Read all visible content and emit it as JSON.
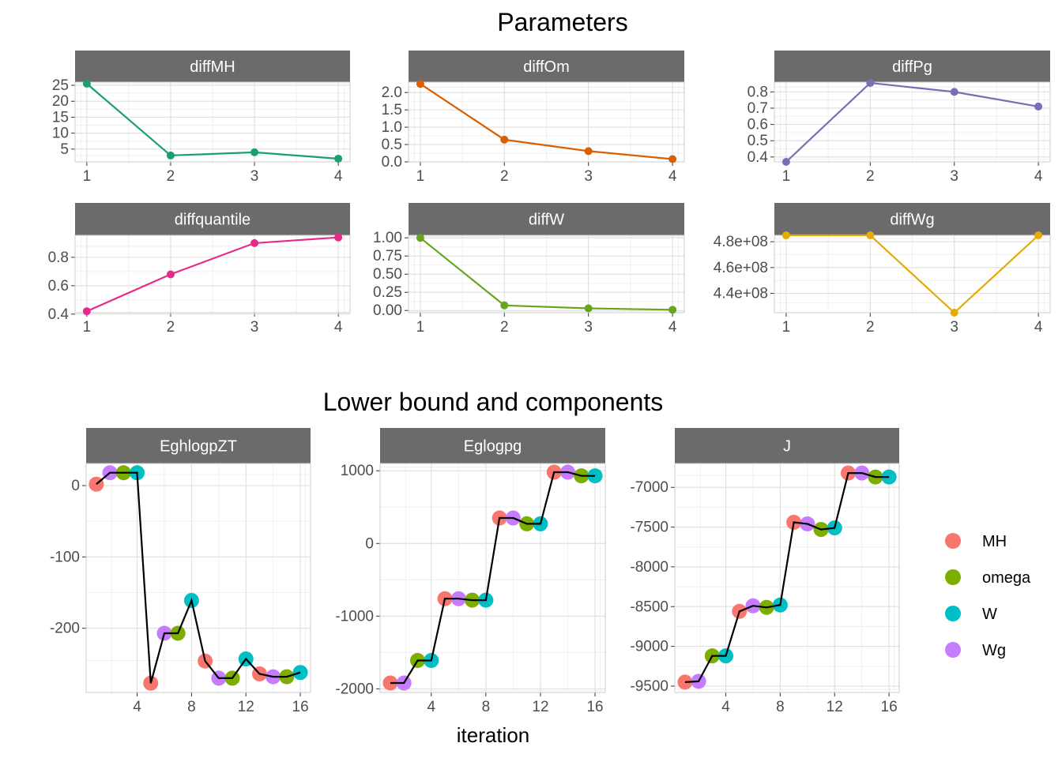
{
  "titles": {
    "top": "Parameters",
    "bottom": "Lower bound and components",
    "bottom_xlabel": "iteration"
  },
  "chart_data": [
    {
      "type": "line",
      "group": "Parameters",
      "panels": [
        {
          "name": "diffMH",
          "color": "#1b9e77",
          "x": [
            1,
            2,
            3,
            4
          ],
          "y": [
            25.5,
            3,
            4,
            2
          ],
          "ylim": [
            1,
            26
          ],
          "yticks": [
            5,
            10,
            15,
            20,
            25
          ],
          "yticklabels": [
            "5",
            "10",
            "15",
            "20",
            "25"
          ],
          "xticks": [
            1,
            2,
            3,
            4
          ]
        },
        {
          "name": "diffOm",
          "color": "#d95f02",
          "x": [
            1,
            2,
            3,
            4
          ],
          "y": [
            2.25,
            0.64,
            0.31,
            0.08
          ],
          "ylim": [
            0,
            2.3
          ],
          "yticks": [
            0,
            0.5,
            1,
            1.5,
            2
          ],
          "yticklabels": [
            "0.0",
            "0.5",
            "1.0",
            "1.5",
            "2.0"
          ],
          "xticks": [
            1,
            2,
            3,
            4
          ]
        },
        {
          "name": "diffPg",
          "color": "#7570b3",
          "x": [
            1,
            2,
            3,
            4
          ],
          "y": [
            0.37,
            0.855,
            0.8,
            0.71
          ],
          "ylim": [
            0.37,
            0.86
          ],
          "yticks": [
            0.4,
            0.5,
            0.6,
            0.7,
            0.8
          ],
          "yticklabels": [
            "0.4",
            "0.5",
            "0.6",
            "0.7",
            "0.8"
          ],
          "xticks": [
            1,
            2,
            3,
            4
          ]
        },
        {
          "name": "diffquantile",
          "color": "#e7298a",
          "x": [
            1,
            2,
            3,
            4
          ],
          "y": [
            0.42,
            0.68,
            0.9,
            0.94
          ],
          "ylim": [
            0.41,
            0.955
          ],
          "yticks": [
            0.4,
            0.6,
            0.8
          ],
          "yticklabels": [
            "0.4",
            "0.6",
            "0.8"
          ],
          "xticks": [
            1,
            2,
            3,
            4
          ]
        },
        {
          "name": "diffW",
          "color": "#66a61e",
          "x": [
            1,
            2,
            3,
            4
          ],
          "y": [
            1.0,
            0.07,
            0.03,
            0.01
          ],
          "ylim": [
            -0.03,
            1.035
          ],
          "yticks": [
            0,
            0.25,
            0.5,
            0.75,
            1
          ],
          "yticklabels": [
            "0.00",
            "0.25",
            "0.50",
            "0.75",
            "1.00"
          ],
          "xticks": [
            1,
            2,
            3,
            4
          ]
        },
        {
          "name": "diffWg",
          "color": "#e6ab02",
          "x": [
            1,
            2,
            3,
            4
          ],
          "y": [
            485000000,
            485000000,
            425000000,
            485000000
          ],
          "ylim": [
            425000000,
            485000000
          ],
          "yticks": [
            440000000,
            460000000,
            480000000
          ],
          "yticklabels": [
            "4.4e+08",
            "4.6e+08",
            "4.8e+08"
          ],
          "xticks": [
            1,
            2,
            3,
            4
          ]
        }
      ]
    },
    {
      "type": "line",
      "group": "Lower bound and components",
      "xlabel": "iteration",
      "legend": [
        {
          "label": "MH",
          "color": "#F8766D"
        },
        {
          "label": "omega",
          "color": "#7CAE00"
        },
        {
          "label": "W",
          "color": "#00BFC4"
        },
        {
          "label": "Wg",
          "color": "#C77CFF"
        }
      ],
      "point_groups": [
        "MH",
        "Wg",
        "omega",
        "W",
        "MH",
        "Wg",
        "omega",
        "W",
        "MH",
        "Wg",
        "omega",
        "W",
        "MH",
        "Wg",
        "omega",
        "W"
      ],
      "x": [
        1,
        2,
        3,
        4,
        5,
        6,
        7,
        8,
        9,
        10,
        11,
        12,
        13,
        14,
        15,
        16
      ],
      "xticks": [
        4,
        8,
        12,
        16
      ],
      "panels": [
        {
          "name": "EghlogpZT",
          "y": [
            2,
            18,
            18,
            18,
            -277,
            -207,
            -207,
            -161,
            -246,
            -270,
            -270,
            -243,
            -264,
            -268,
            -268,
            -262
          ],
          "ylim": [
            -290,
            31
          ],
          "yticks": [
            0,
            -100,
            -200
          ],
          "yticklabels": [
            "0",
            "-100",
            "-200"
          ]
        },
        {
          "name": "Eglogpg",
          "y": [
            -1920,
            -1920,
            -1610,
            -1610,
            -760,
            -760,
            -780,
            -780,
            350,
            350,
            270,
            270,
            980,
            980,
            930,
            930
          ],
          "ylim": [
            -2050,
            1100
          ],
          "yticks": [
            1000,
            0,
            -1000,
            -2000
          ],
          "yticklabels": [
            "1000",
            "0",
            "-1000",
            "-2000"
          ]
        },
        {
          "name": "J",
          "y": [
            -9450,
            -9440,
            -9120,
            -9120,
            -8560,
            -8490,
            -8510,
            -8480,
            -7440,
            -7460,
            -7530,
            -7510,
            -6820,
            -6820,
            -6870,
            -6870
          ],
          "ylim": [
            -9580,
            -6700
          ],
          "yticks": [
            -7000,
            -7500,
            -8000,
            -8500,
            -9000,
            -9500
          ],
          "yticklabels": [
            "-7000",
            "-7500",
            "-8000",
            "-8500",
            "-9000",
            "-9500"
          ]
        }
      ]
    }
  ]
}
